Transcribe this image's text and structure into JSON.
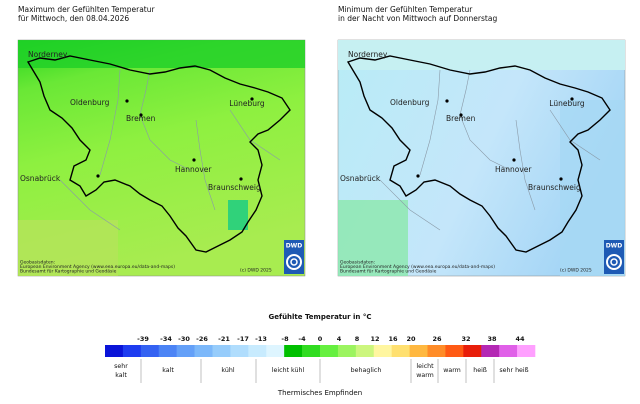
{
  "maps": [
    {
      "title": [
        "Maximum der Gefühlten Temperatur",
        "für Mittwoch, den 08.04.2026"
      ]
    },
    {
      "title": [
        "Minimum der Gefühlten Temperatur",
        "in der Nacht von Mittwoch auf Donnerstag"
      ]
    }
  ],
  "cities": [
    "Norderney",
    "Oldenburg",
    "Bremen",
    "Lüneburg",
    "Hannover",
    "Osnabrück",
    "Braunschweig"
  ],
  "attribution": [
    "Geobasisdaten:",
    "European Environment Agency (www.eea.europa.eu/data-and-maps)",
    "Bundesamt für Kartographie und Geodäsie",
    "(c) DWD 2025"
  ],
  "logo": "DWD",
  "legend": {
    "title": "Gefühlte Temperatur in °C",
    "ticks": [
      -39,
      -34,
      -30,
      -26,
      -21,
      -17,
      -13,
      -8,
      -4,
      0,
      4,
      8,
      12,
      16,
      20,
      26,
      32,
      38,
      44
    ],
    "colors": [
      "#0a14d8",
      "#1e3cf0",
      "#3462f2",
      "#4c84f5",
      "#64a0f8",
      "#7cb8fa",
      "#96ccfb",
      "#b0ddfd",
      "#c8ebfe",
      "#def5ff",
      "#00c000",
      "#30dc20",
      "#66f040",
      "#9cf460",
      "#ccf67e",
      "#fff6a0",
      "#ffe070",
      "#ffb840",
      "#ff8c28",
      "#ff5a14",
      "#e81e0a",
      "#b428b4",
      "#e060e8",
      "#ffa0ff"
    ],
    "categories": [
      [
        "sehr",
        "kalt"
      ],
      [
        "kalt"
      ],
      [
        "kühl"
      ],
      [
        "leicht kühl"
      ],
      [
        "behaglich"
      ],
      [
        "leicht",
        "warm"
      ],
      [
        "warm"
      ],
      [
        "heiß"
      ],
      [
        "sehr heiß"
      ]
    ],
    "footer": "Thermisches Empfinden"
  }
}
